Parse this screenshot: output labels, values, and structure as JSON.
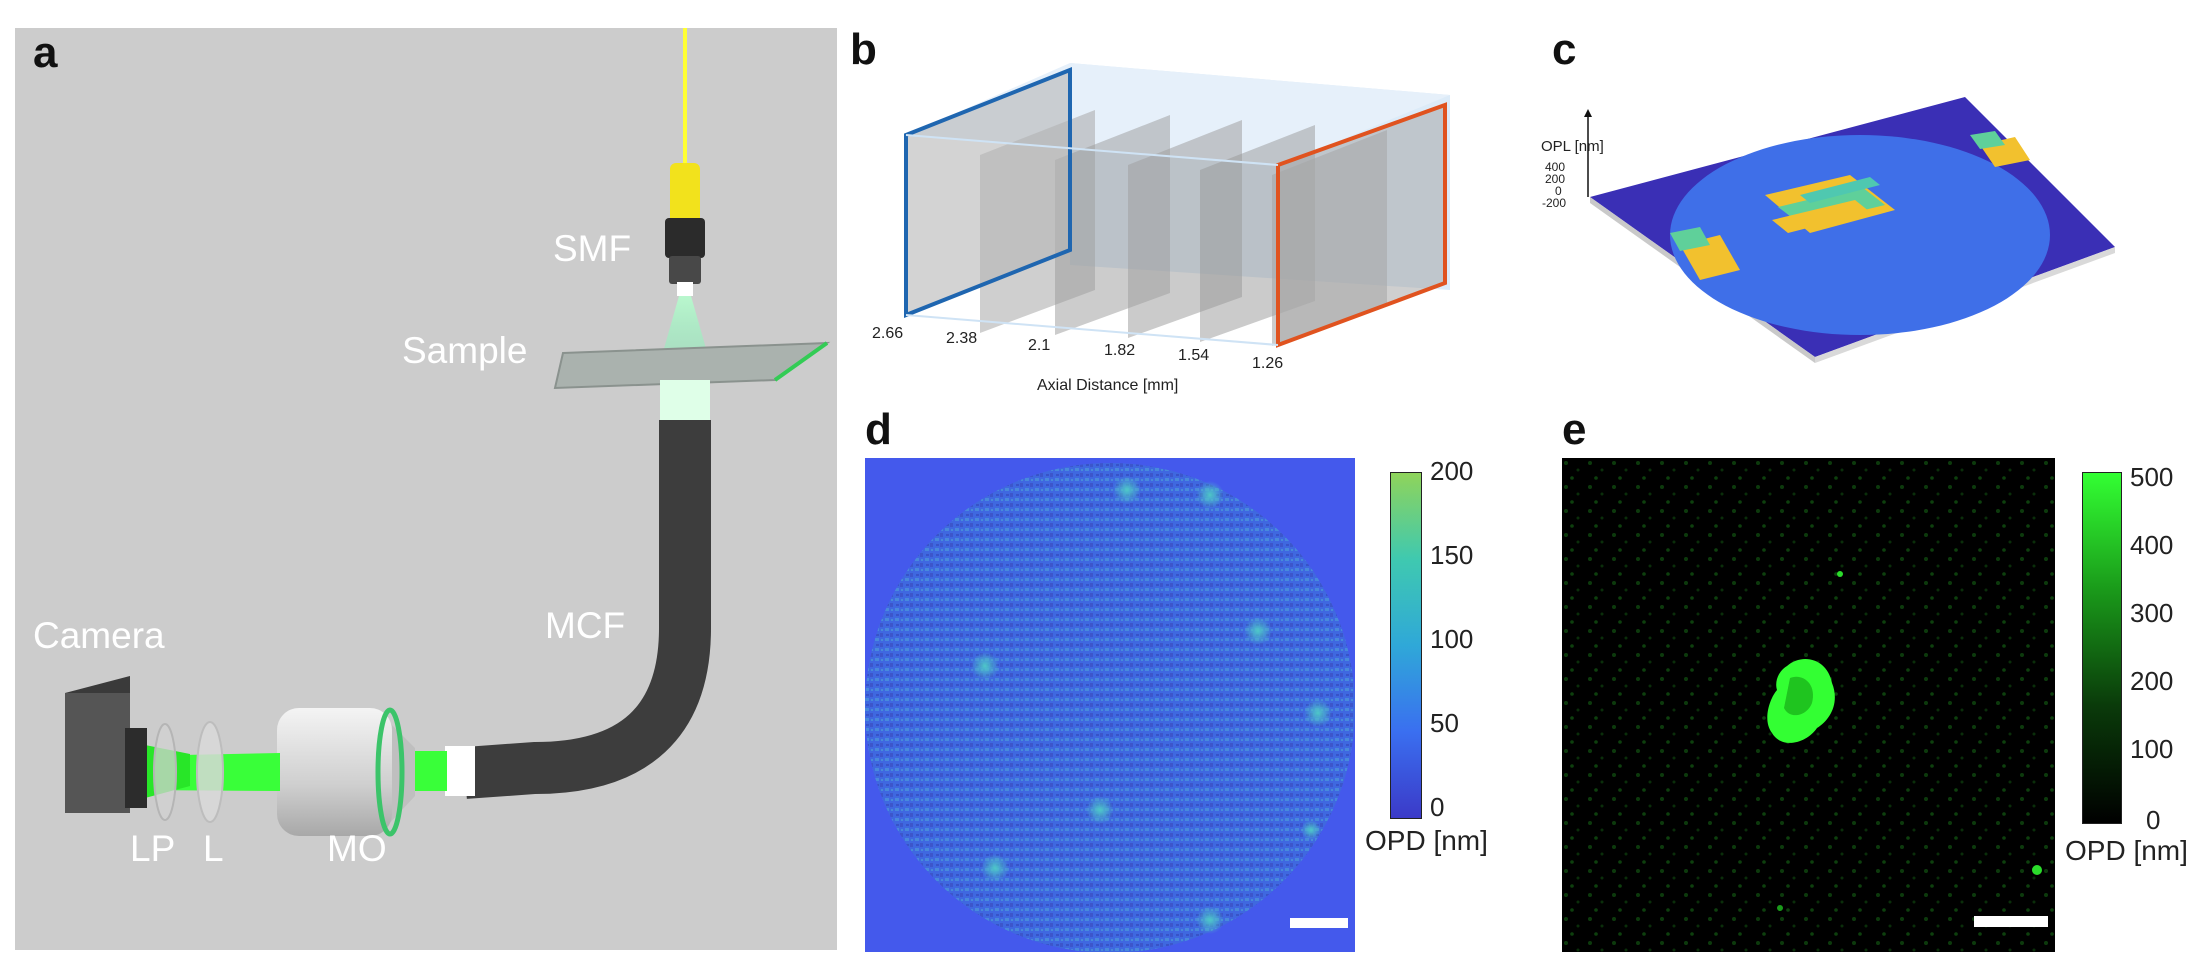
{
  "figure": {
    "panels": {
      "a": {
        "letter": "a",
        "labels": {
          "smf": "SMF",
          "sample": "Sample",
          "camera": "Camera",
          "mcf": "MCF",
          "lp": "LP",
          "l": "L",
          "mo": "MO"
        },
        "colors": {
          "background": "#cccccc",
          "fiber": "#ffff33",
          "beam": "#39ff39",
          "bundle": "#3d3d3d"
        }
      },
      "b": {
        "letter": "b",
        "xlabel": "Axial Distance [mm]",
        "ticks": [
          "2.66",
          "2.38",
          "2.1",
          "1.82",
          "1.54",
          "1.26"
        ],
        "colors": {
          "first_frame": "#1f66b0",
          "last_frame": "#e0531f",
          "volume": "#cfe3f5"
        }
      },
      "c": {
        "letter": "c",
        "zlabel": "OPL [nm]",
        "zticks": [
          "400",
          "200",
          "0",
          "-200"
        ],
        "colors": {
          "floor": "#3a2fb5",
          "disk": "#3f6fe8",
          "bars": "#f2c12e",
          "bars_mid": "#5fd09a"
        }
      },
      "d": {
        "letter": "d",
        "colorbar": {
          "ticks": [
            "200",
            "150",
            "100",
            "50",
            "0"
          ],
          "label": "OPD [nm]",
          "min": 0,
          "max": 200
        },
        "colors": {
          "background": "#4459ec",
          "disk": "#3f68e0",
          "spot": "#3fb0c8"
        }
      },
      "e": {
        "letter": "e",
        "colorbar": {
          "ticks": [
            "500",
            "400",
            "300",
            "200",
            "100",
            "0"
          ],
          "label": "OPD [nm]",
          "min": 0,
          "max": 500
        },
        "colors": {
          "background": "#000000",
          "signal": "#33ff33"
        }
      }
    }
  }
}
